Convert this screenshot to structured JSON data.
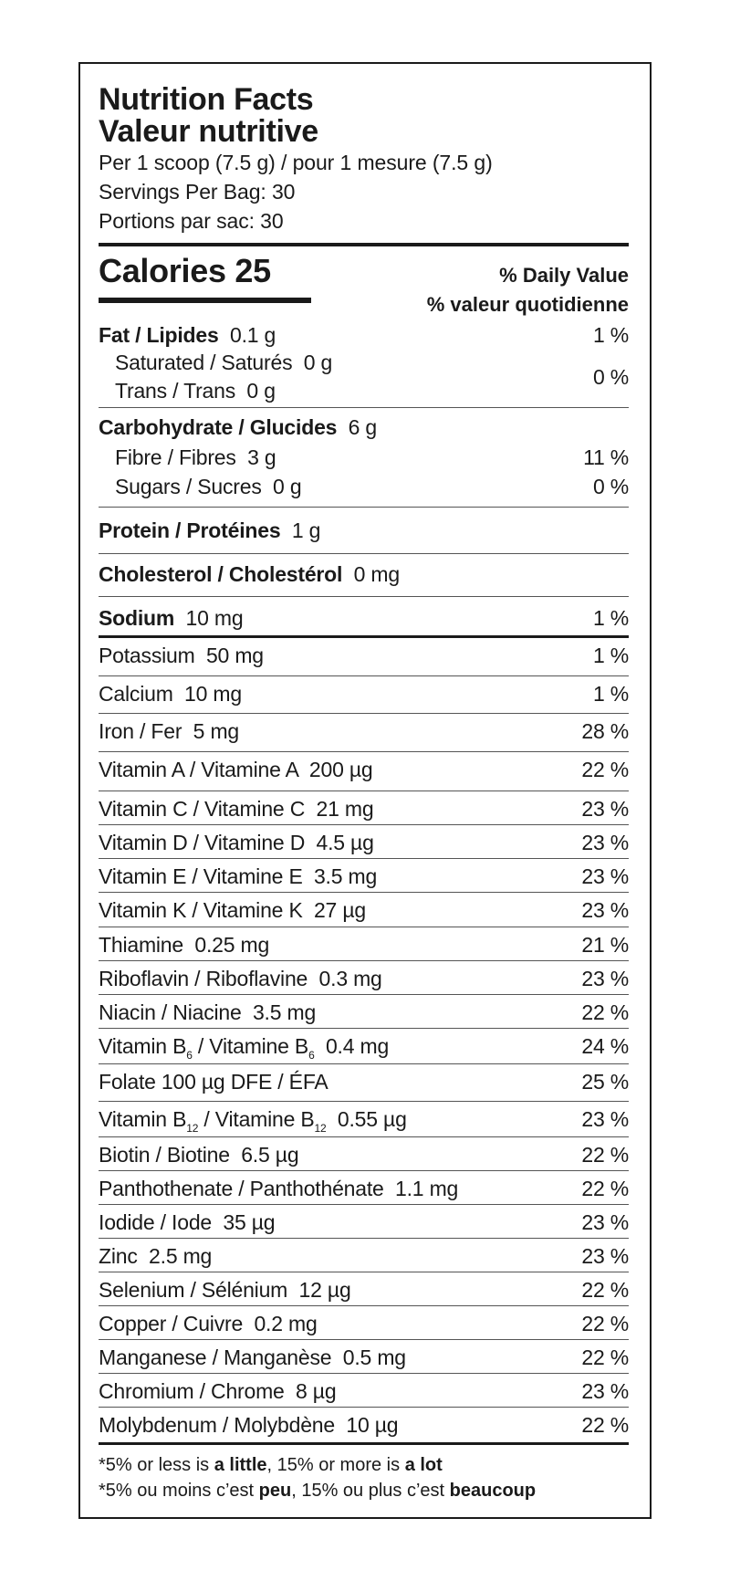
{
  "header": {
    "title_en": "Nutrition Facts",
    "title_fr": "Valeur nutritive",
    "serving": "Per 1 scoop (7.5 g) / pour 1 mesure (7.5 g)",
    "servings_en": "Servings Per Bag: 30",
    "servings_fr": "Portions par sac: 30"
  },
  "calories": {
    "label": "Calories 25",
    "dv_en": "% Daily Value",
    "dv_fr": "% valeur quotidienne"
  },
  "fat": {
    "name": "Fat / Lipides",
    "amount": "0.1 g",
    "dv": "1 %"
  },
  "saturated": {
    "name": "Saturated / Saturés",
    "amount": "0 g"
  },
  "trans": {
    "name": "Trans / Trans",
    "amount": "0 g",
    "dv": "0 %"
  },
  "carb": {
    "name": "Carbohydrate / Glucides",
    "amount": "6 g"
  },
  "fibre": {
    "name": "Fibre / Fibres",
    "amount": "3 g",
    "dv": "11 %"
  },
  "sugars": {
    "name": "Sugars / Sucres",
    "amount": "0 g",
    "dv": "0 %"
  },
  "protein": {
    "name": "Protein / Protéines",
    "amount": "1 g"
  },
  "cholesterol": {
    "name": "Cholesterol / Cholestérol",
    "amount": "0 mg"
  },
  "sodium": {
    "name": "Sodium",
    "amount": "10 mg",
    "dv": "1 %"
  },
  "nutrients": [
    {
      "name": "Potassium  50 mg",
      "dv": "1 %"
    },
    {
      "name": "Calcium  10 mg",
      "dv": "1 %"
    },
    {
      "name": "Iron / Fer  5 mg",
      "dv": "28 %"
    },
    {
      "name": "Vitamin A / Vitamine A  200 µg",
      "dv": "22 %"
    },
    {
      "name": "Vitamin C / Vitamine C  21 mg",
      "dv": "23 %"
    },
    {
      "name": "Vitamin D / Vitamine D  4.5 µg",
      "dv": "23 %"
    },
    {
      "name": "Vitamin E / Vitamine E  3.5 mg",
      "dv": "23 %"
    },
    {
      "name": "Vitamin K / Vitamine K  27 µg",
      "dv": "23 %"
    },
    {
      "name": "Thiamine  0.25 mg",
      "dv": "21 %"
    },
    {
      "name": "Riboflavin / Riboflavine  0.3 mg",
      "dv": "23 %"
    },
    {
      "name": "Niacin / Niacine  3.5 mg",
      "dv": "22 %"
    },
    {
      "name": "Vitamin B",
      "sub": "6",
      "name2": " / Vitamine B",
      "sub2": "6",
      "name3": "  0.4 mg",
      "dv": "24 %"
    },
    {
      "name": "Folate 100 µg DFE / ÉFA",
      "dv": "25 %"
    },
    {
      "name": "Vitamin B",
      "sub": "12",
      "name2": " / Vitamine B",
      "sub2": "12",
      "name3": "  0.55 µg",
      "dv": "23 %"
    },
    {
      "name": "Biotin / Biotine  6.5 µg",
      "dv": "22 %"
    },
    {
      "name": "Panthothenate / Panthothénate  1.1 mg",
      "dv": "22 %"
    },
    {
      "name": "Iodide / Iode  35 µg",
      "dv": "23 %"
    },
    {
      "name": "Zinc  2.5 mg",
      "dv": "23 %"
    },
    {
      "name": "Selenium / Sélénium  12 µg",
      "dv": "22 %"
    },
    {
      "name": "Copper / Cuivre  0.2 mg",
      "dv": "22 %"
    },
    {
      "name": "Manganese / Manganèse  0.5 mg",
      "dv": "22 %"
    },
    {
      "name": "Chromium / Chrome  8 µg",
      "dv": "23 %"
    },
    {
      "name": "Molybdenum / Molybdène  10 µg",
      "dv": "22 %"
    }
  ],
  "footnote": {
    "en_pre": "*5% or less is ",
    "en_b1": "a little",
    "en_mid": ", 15% or more is ",
    "en_b2": "a lot",
    "fr_pre": "*5% ou moins c’est ",
    "fr_b1": "peu",
    "fr_mid": ", 15% ou plus c’est ",
    "fr_b2": "beaucoup"
  }
}
